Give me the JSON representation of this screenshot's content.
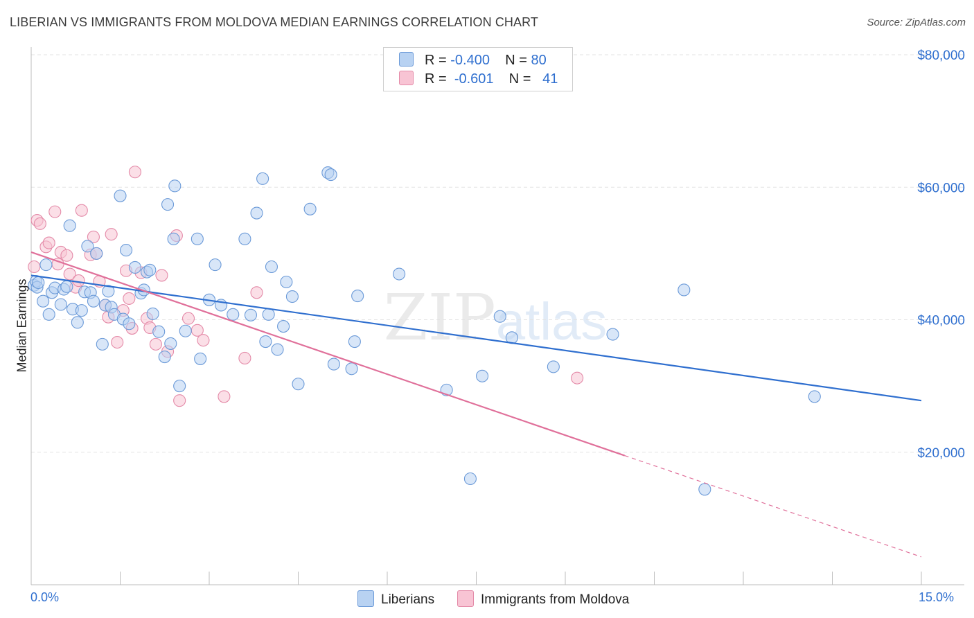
{
  "title": "LIBERIAN VS IMMIGRANTS FROM MOLDOVA MEDIAN EARNINGS CORRELATION CHART",
  "source": "Source: ZipAtlas.com",
  "legend_top": [
    {
      "r_label": "R =",
      "r_value": "-0.400",
      "n_label": "N =",
      "n_value": "80"
    },
    {
      "r_label": "R =",
      "r_value": "-0.601",
      "n_label": "N =",
      "n_value": "41"
    }
  ],
  "legend_bottom": [
    "Liberians",
    "Immigrants from Moldova"
  ],
  "colors": {
    "liberians_fill": "#b8d2f2",
    "liberians_stroke": "#6b9ad8",
    "liberians_line": "#2f6fcf",
    "moldova_fill": "#f8c4d4",
    "moldova_stroke": "#e48aa8",
    "moldova_line": "#e0709a",
    "axis_label": "#2f6fcf",
    "grid": "#e3e3e3"
  },
  "chart_data": {
    "type": "scatter",
    "title": "LIBERIAN VS IMMIGRANTS FROM MOLDOVA MEDIAN EARNINGS CORRELATION CHART",
    "xlabel": "",
    "ylabel": "Median Earnings",
    "x_unit": "%",
    "xlim": [
      0,
      15
    ],
    "ylim": [
      0,
      85000
    ],
    "x_tick_labels": [
      "0.0%",
      "15.0%"
    ],
    "y_ticks": [
      20000,
      40000,
      60000,
      80000
    ],
    "y_tick_labels": [
      "$20,000",
      "$40,000",
      "$60,000",
      "$80,000"
    ],
    "grid": true,
    "legend_position": "top-center",
    "watermark": "ZIPatlas",
    "series": [
      {
        "name": "Liberians",
        "R": -0.4,
        "N": 80,
        "trend": {
          "x": [
            0.0,
            15.0
          ],
          "y": [
            46700,
            27800
          ]
        },
        "points": [
          [
            0.05,
            45200
          ],
          [
            0.08,
            45800
          ],
          [
            0.1,
            44900
          ],
          [
            0.12,
            45600
          ],
          [
            0.2,
            42800
          ],
          [
            0.25,
            48300
          ],
          [
            0.3,
            40800
          ],
          [
            0.35,
            44100
          ],
          [
            0.4,
            44800
          ],
          [
            0.5,
            42300
          ],
          [
            0.55,
            44600
          ],
          [
            0.6,
            45000
          ],
          [
            0.65,
            54200
          ],
          [
            0.7,
            41600
          ],
          [
            0.78,
            39600
          ],
          [
            0.85,
            41400
          ],
          [
            0.9,
            44200
          ],
          [
            0.95,
            51100
          ],
          [
            1.0,
            44100
          ],
          [
            1.05,
            42800
          ],
          [
            1.1,
            50000
          ],
          [
            1.2,
            36300
          ],
          [
            1.25,
            42200
          ],
          [
            1.3,
            44300
          ],
          [
            1.35,
            41900
          ],
          [
            1.4,
            40800
          ],
          [
            1.5,
            58700
          ],
          [
            1.55,
            40100
          ],
          [
            1.6,
            50500
          ],
          [
            1.65,
            39400
          ],
          [
            1.75,
            47900
          ],
          [
            1.85,
            44000
          ],
          [
            1.9,
            44500
          ],
          [
            1.95,
            47200
          ],
          [
            2.0,
            47500
          ],
          [
            2.05,
            40900
          ],
          [
            2.15,
            38200
          ],
          [
            2.25,
            34400
          ],
          [
            2.3,
            57400
          ],
          [
            2.35,
            36400
          ],
          [
            2.4,
            52200
          ],
          [
            2.42,
            60200
          ],
          [
            2.5,
            30000
          ],
          [
            2.6,
            38300
          ],
          [
            2.8,
            52200
          ],
          [
            2.85,
            34100
          ],
          [
            3.0,
            43000
          ],
          [
            3.1,
            48300
          ],
          [
            3.2,
            42200
          ],
          [
            3.4,
            40800
          ],
          [
            3.6,
            52200
          ],
          [
            3.7,
            40700
          ],
          [
            3.8,
            56100
          ],
          [
            3.9,
            61300
          ],
          [
            3.95,
            36700
          ],
          [
            4.0,
            40800
          ],
          [
            4.05,
            48000
          ],
          [
            4.15,
            35500
          ],
          [
            4.25,
            39000
          ],
          [
            4.3,
            45700
          ],
          [
            4.4,
            43500
          ],
          [
            4.5,
            30300
          ],
          [
            4.7,
            56700
          ],
          [
            5.0,
            62200
          ],
          [
            5.05,
            61900
          ],
          [
            5.1,
            33300
          ],
          [
            5.4,
            32600
          ],
          [
            5.45,
            36700
          ],
          [
            5.5,
            43600
          ],
          [
            6.2,
            46900
          ],
          [
            7.0,
            29400
          ],
          [
            7.4,
            16000
          ],
          [
            7.6,
            31500
          ],
          [
            7.9,
            40500
          ],
          [
            8.1,
            37300
          ],
          [
            8.8,
            32900
          ],
          [
            9.8,
            37800
          ],
          [
            11.0,
            44500
          ],
          [
            11.35,
            14400
          ],
          [
            13.2,
            28400
          ]
        ]
      },
      {
        "name": "Immigrants from Moldova",
        "R": -0.601,
        "N": 41,
        "trend": {
          "x": [
            0.0,
            10.0
          ],
          "y": [
            50200,
            19500
          ]
        },
        "trend_dashed": {
          "x": [
            10.0,
            15.0
          ],
          "y": [
            19500,
            4200
          ]
        },
        "points": [
          [
            0.05,
            48000
          ],
          [
            0.1,
            55000
          ],
          [
            0.15,
            54500
          ],
          [
            0.25,
            51000
          ],
          [
            0.3,
            51600
          ],
          [
            0.4,
            56300
          ],
          [
            0.45,
            48400
          ],
          [
            0.5,
            50200
          ],
          [
            0.6,
            49700
          ],
          [
            0.65,
            46900
          ],
          [
            0.75,
            44900
          ],
          [
            0.8,
            45900
          ],
          [
            0.85,
            56500
          ],
          [
            1.0,
            49800
          ],
          [
            1.05,
            52500
          ],
          [
            1.1,
            50000
          ],
          [
            1.15,
            45800
          ],
          [
            1.25,
            42200
          ],
          [
            1.3,
            40400
          ],
          [
            1.35,
            52900
          ],
          [
            1.45,
            36600
          ],
          [
            1.55,
            41400
          ],
          [
            1.6,
            47400
          ],
          [
            1.65,
            43200
          ],
          [
            1.7,
            38700
          ],
          [
            1.75,
            62300
          ],
          [
            1.85,
            47100
          ],
          [
            1.95,
            40200
          ],
          [
            2.0,
            38800
          ],
          [
            2.1,
            36300
          ],
          [
            2.2,
            46700
          ],
          [
            2.3,
            35200
          ],
          [
            2.45,
            52700
          ],
          [
            2.5,
            27800
          ],
          [
            2.65,
            40200
          ],
          [
            2.8,
            38400
          ],
          [
            2.9,
            36900
          ],
          [
            3.25,
            28400
          ],
          [
            3.6,
            34200
          ],
          [
            3.8,
            44100
          ],
          [
            9.2,
            31200
          ]
        ]
      }
    ]
  }
}
